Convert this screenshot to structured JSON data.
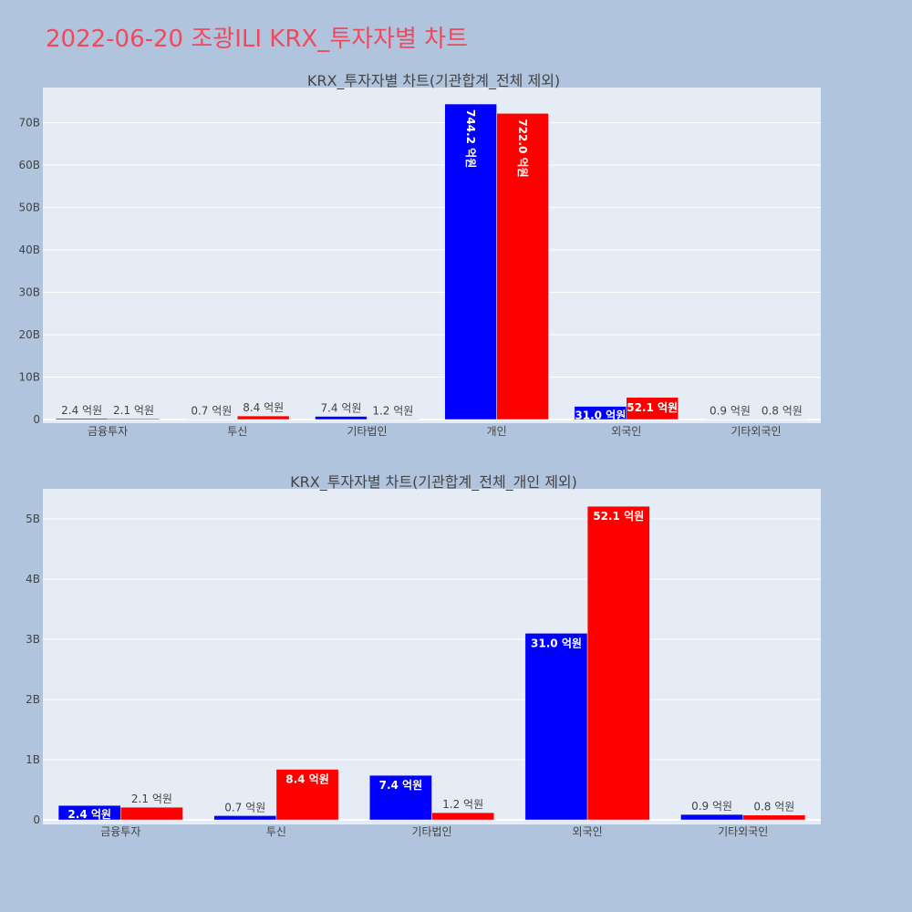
{
  "page_title": "2022-06-20 조광ILI KRX_투자자별 차트",
  "colors": {
    "series_a": "#0000ff",
    "series_b": "#ff0000",
    "plot_bg": "#e5ecf6",
    "page_bg": "#b0c4de"
  },
  "chart_data": [
    {
      "type": "bar",
      "title": "KRX_투자자별 차트(기관합계_전체 제외)",
      "categories": [
        "금융투자",
        "투신",
        "기타법인",
        "개인",
        "외국인",
        "기타외국인"
      ],
      "series": [
        {
          "values": [
            0.24,
            0.07,
            0.74,
            74.42,
            3.1,
            0.09
          ],
          "labels": [
            "2.4 억원",
            "0.7 억원",
            "7.4 억원",
            "744.2 억원",
            "31.0 억원",
            "0.9 억원"
          ],
          "color": "#0000ff"
        },
        {
          "values": [
            0.21,
            0.84,
            0.12,
            72.2,
            5.21,
            0.08
          ],
          "labels": [
            "2.1 억원",
            "8.4 억원",
            "1.2 억원",
            "722.0 억원",
            "52.1 억원",
            "0.8 억원"
          ],
          "color": "#ff0000"
        }
      ],
      "yticks": [
        0,
        10,
        20,
        30,
        40,
        50,
        60,
        70
      ],
      "ytick_labels": [
        "0",
        "10B",
        "20B",
        "30B",
        "40B",
        "50B",
        "60B",
        "70B"
      ],
      "ylim": [
        0,
        78.3
      ],
      "grid": true
    },
    {
      "type": "bar",
      "title": "KRX_투자자별 차트(기관합계_전체_개인 제외)",
      "categories": [
        "금융투자",
        "투신",
        "기타법인",
        "외국인",
        "기타외국인"
      ],
      "series": [
        {
          "values": [
            0.24,
            0.07,
            0.74,
            3.1,
            0.09
          ],
          "labels": [
            "2.4 억원",
            "0.7 억원",
            "7.4 억원",
            "31.0 억원",
            "0.9 억원"
          ],
          "color": "#0000ff"
        },
        {
          "values": [
            0.21,
            0.84,
            0.12,
            5.21,
            0.08
          ],
          "labels": [
            "2.1 억원",
            "8.4 억원",
            "1.2 억원",
            "52.1 억원",
            "0.8 억원"
          ],
          "color": "#ff0000"
        }
      ],
      "yticks": [
        0,
        1,
        2,
        3,
        4,
        5
      ],
      "ytick_labels": [
        "0",
        "1B",
        "2B",
        "3B",
        "4B",
        "5B"
      ],
      "ylim": [
        0,
        5.5
      ],
      "grid": true
    }
  ]
}
